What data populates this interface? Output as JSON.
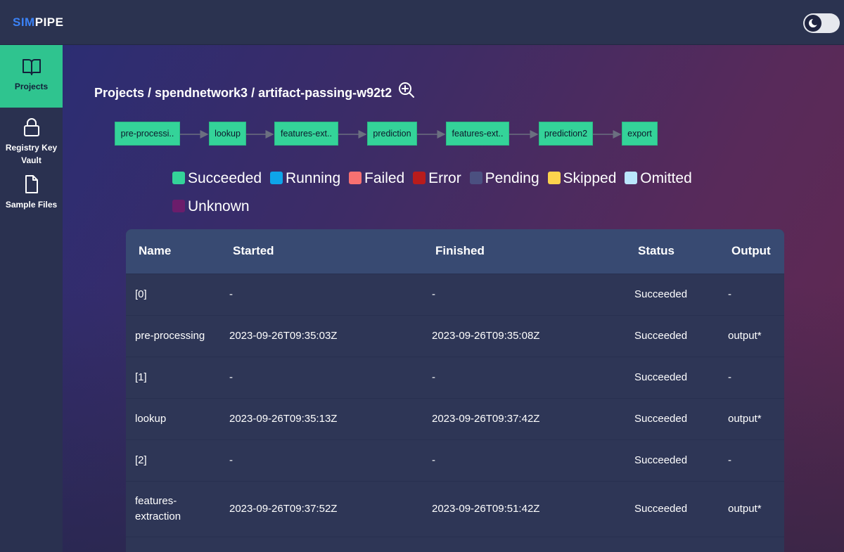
{
  "app": {
    "logo_part1": "SIM",
    "logo_part2": "PIPE"
  },
  "header": {
    "theme_toggle_icon": "moon-icon"
  },
  "sidebar": {
    "items": [
      {
        "label": "Projects",
        "icon": "book-open-icon",
        "active": true
      },
      {
        "label": "Registry Key Vault",
        "icon": "lock-icon",
        "active": false
      },
      {
        "label": "Sample Files",
        "icon": "file-icon",
        "active": false
      }
    ]
  },
  "breadcrumb": {
    "text": "Projects / spendnetwork3 / artifact-passing-w92t2",
    "zoom_icon": "zoom-in-icon"
  },
  "pipeline": {
    "nodes": [
      "pre-processi..",
      "lookup",
      "features-ext..",
      "prediction",
      "features-ext..",
      "prediction2",
      "export"
    ],
    "node_color": "#34d399"
  },
  "legend": [
    {
      "label": "Succeeded",
      "color": "#34d399"
    },
    {
      "label": "Running",
      "color": "#0ea5e9"
    },
    {
      "label": "Failed",
      "color": "#f87171"
    },
    {
      "label": "Error",
      "color": "#b91c1c"
    },
    {
      "label": "Pending",
      "color": "#4b5080"
    },
    {
      "label": "Skipped",
      "color": "#fcd34d"
    },
    {
      "label": "Omitted",
      "color": "#bae6fd"
    },
    {
      "label": "Unknown",
      "color": "#6b1d6b"
    }
  ],
  "table": {
    "columns": [
      "Name",
      "Started",
      "Finished",
      "Status",
      "Output"
    ],
    "rows": [
      {
        "name": "[0]",
        "started": "-",
        "finished": "-",
        "status": "Succeeded",
        "output": "-"
      },
      {
        "name": "pre-processing",
        "started": "2023-09-26T09:35:03Z",
        "finished": "2023-09-26T09:35:08Z",
        "status": "Succeeded",
        "output": "output*"
      },
      {
        "name": "[1]",
        "started": "-",
        "finished": "-",
        "status": "Succeeded",
        "output": "-"
      },
      {
        "name": "lookup",
        "started": "2023-09-26T09:35:13Z",
        "finished": "2023-09-26T09:37:42Z",
        "status": "Succeeded",
        "output": "output*"
      },
      {
        "name": "[2]",
        "started": "-",
        "finished": "-",
        "status": "Succeeded",
        "output": "-"
      },
      {
        "name": "features-extraction",
        "started": "2023-09-26T09:37:52Z",
        "finished": "2023-09-26T09:51:42Z",
        "status": "Succeeded",
        "output": "output*"
      }
    ]
  }
}
